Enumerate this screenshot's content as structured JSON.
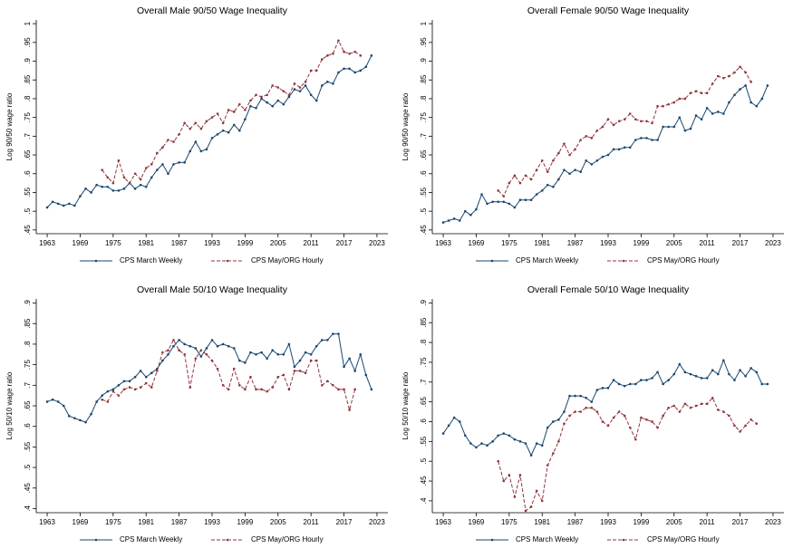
{
  "chart_data": [
    {
      "type": "line",
      "title": "Overall Male 90/50 Wage Inequality",
      "y_label": "Log 90/50 wage ratio",
      "legend": "bottom",
      "grid": false,
      "x": [
        1963,
        1964,
        1965,
        1966,
        1967,
        1968,
        1969,
        1970,
        1971,
        1972,
        1973,
        1974,
        1975,
        1976,
        1977,
        1978,
        1979,
        1980,
        1981,
        1982,
        1983,
        1984,
        1985,
        1986,
        1987,
        1988,
        1989,
        1990,
        1991,
        1992,
        1993,
        1994,
        1995,
        1996,
        1997,
        1998,
        1999,
        2000,
        2001,
        2002,
        2003,
        2004,
        2005,
        2006,
        2007,
        2008,
        2009,
        2010,
        2011,
        2012,
        2013,
        2014,
        2015,
        2016,
        2017,
        2018,
        2019,
        2020,
        2021,
        2022
      ],
      "xlim": [
        1962,
        2024
      ],
      "xticks": [
        1963,
        1969,
        1975,
        1981,
        1987,
        1993,
        1999,
        2005,
        2011,
        2017,
        2023
      ],
      "ylim": [
        0.44,
        1.01
      ],
      "yticks": [
        {
          "value": 0.45,
          "label": ".45"
        },
        {
          "value": 0.5,
          "label": ".5"
        },
        {
          "value": 0.55,
          "label": ".55"
        },
        {
          "value": 0.6,
          "label": ".6"
        },
        {
          "value": 0.65,
          "label": ".65"
        },
        {
          "value": 0.7,
          "label": ".7"
        },
        {
          "value": 0.75,
          "label": ".75"
        },
        {
          "value": 0.8,
          "label": ".8"
        },
        {
          "value": 0.85,
          "label": ".85"
        },
        {
          "value": 0.9,
          "label": ".9"
        },
        {
          "value": 0.95,
          "label": ".95"
        },
        1
      ],
      "series": [
        {
          "name": "CPS March Weekly",
          "color": "#1a476f",
          "dash": false,
          "values": [
            0.51,
            0.525,
            0.52,
            0.515,
            0.52,
            0.515,
            0.54,
            0.56,
            0.55,
            0.57,
            0.565,
            0.565,
            0.555,
            0.555,
            0.56,
            0.575,
            0.56,
            0.57,
            0.565,
            0.59,
            0.61,
            0.625,
            0.6,
            0.625,
            0.63,
            0.63,
            0.66,
            0.685,
            0.66,
            0.665,
            0.695,
            0.705,
            0.715,
            0.71,
            0.73,
            0.715,
            0.745,
            0.78,
            0.775,
            0.8,
            0.79,
            0.78,
            0.795,
            0.785,
            0.805,
            0.825,
            0.82,
            0.835,
            0.81,
            0.795,
            0.835,
            0.845,
            0.84,
            0.87,
            0.88,
            0.88,
            0.87,
            0.875,
            0.885,
            0.915
          ]
        },
        {
          "name": "CPS May/ORG Hourly",
          "color": "#90353b",
          "dash": true,
          "values": [
            null,
            null,
            null,
            null,
            null,
            null,
            null,
            null,
            null,
            null,
            0.61,
            0.59,
            0.575,
            0.635,
            0.59,
            0.575,
            0.6,
            0.585,
            0.615,
            0.625,
            0.655,
            0.67,
            0.69,
            0.685,
            0.705,
            0.735,
            0.72,
            0.735,
            0.72,
            0.74,
            0.75,
            0.76,
            0.735,
            0.77,
            0.765,
            0.785,
            0.77,
            0.795,
            0.81,
            0.805,
            0.81,
            0.835,
            0.83,
            0.82,
            0.81,
            0.84,
            0.83,
            0.845,
            0.875,
            0.875,
            0.905,
            0.915,
            0.92,
            0.955,
            0.925,
            0.92,
            0.925,
            0.915,
            null,
            null
          ]
        }
      ]
    },
    {
      "type": "line",
      "title": "Overall Female 90/50 Wage Inequality",
      "y_label": "Log 90/50 wage ratio",
      "legend": "bottom",
      "grid": false,
      "x": [
        1963,
        1964,
        1965,
        1966,
        1967,
        1968,
        1969,
        1970,
        1971,
        1972,
        1973,
        1974,
        1975,
        1976,
        1977,
        1978,
        1979,
        1980,
        1981,
        1982,
        1983,
        1984,
        1985,
        1986,
        1987,
        1988,
        1989,
        1990,
        1991,
        1992,
        1993,
        1994,
        1995,
        1996,
        1997,
        1998,
        1999,
        2000,
        2001,
        2002,
        2003,
        2004,
        2005,
        2006,
        2007,
        2008,
        2009,
        2010,
        2011,
        2012,
        2013,
        2014,
        2015,
        2016,
        2017,
        2018,
        2019,
        2020,
        2021,
        2022
      ],
      "xlim": [
        1962,
        2024
      ],
      "xticks": [
        1963,
        1969,
        1975,
        1981,
        1987,
        1993,
        1999,
        2005,
        2011,
        2017,
        2023
      ],
      "ylim": [
        0.44,
        1.01
      ],
      "yticks": [
        {
          "value": 0.45,
          "label": ".45"
        },
        {
          "value": 0.5,
          "label": ".5"
        },
        {
          "value": 0.55,
          "label": ".55"
        },
        {
          "value": 0.6,
          "label": ".6"
        },
        {
          "value": 0.65,
          "label": ".65"
        },
        {
          "value": 0.7,
          "label": ".7"
        },
        {
          "value": 0.75,
          "label": ".75"
        },
        {
          "value": 0.8,
          "label": ".8"
        },
        {
          "value": 0.85,
          "label": ".85"
        },
        {
          "value": 0.9,
          "label": ".9"
        },
        {
          "value": 0.95,
          "label": ".95"
        },
        1
      ],
      "series": [
        {
          "name": "CPS March Weekly",
          "color": "#1a476f",
          "dash": false,
          "values": [
            0.47,
            0.475,
            0.48,
            0.475,
            0.5,
            0.49,
            0.505,
            0.545,
            0.52,
            0.525,
            0.525,
            0.525,
            0.52,
            0.51,
            0.53,
            0.53,
            0.53,
            0.545,
            0.555,
            0.57,
            0.565,
            0.585,
            0.61,
            0.6,
            0.61,
            0.605,
            0.635,
            0.625,
            0.635,
            0.645,
            0.65,
            0.665,
            0.665,
            0.67,
            0.67,
            0.69,
            0.695,
            0.695,
            0.69,
            0.69,
            0.725,
            0.725,
            0.725,
            0.75,
            0.715,
            0.72,
            0.755,
            0.745,
            0.775,
            0.76,
            0.765,
            0.76,
            0.79,
            0.81,
            0.825,
            0.835,
            0.79,
            0.78,
            0.8,
            0.835
          ]
        },
        {
          "name": "CPS May/ORG Hourly",
          "color": "#90353b",
          "dash": true,
          "values": [
            null,
            null,
            null,
            null,
            null,
            null,
            null,
            null,
            null,
            null,
            0.555,
            0.54,
            0.575,
            0.595,
            0.575,
            0.595,
            0.585,
            0.61,
            0.635,
            0.605,
            0.635,
            0.655,
            0.68,
            0.65,
            0.665,
            0.69,
            0.7,
            0.695,
            0.715,
            0.725,
            0.745,
            0.73,
            0.74,
            0.745,
            0.76,
            0.745,
            0.74,
            0.74,
            0.735,
            0.78,
            0.78,
            0.785,
            0.79,
            0.8,
            0.8,
            0.815,
            0.82,
            0.815,
            0.815,
            0.84,
            0.86,
            0.855,
            0.86,
            0.87,
            0.885,
            0.87,
            0.845,
            null,
            null,
            null
          ]
        }
      ]
    },
    {
      "type": "line",
      "title": "Overall Male 50/10 Wage Inequality",
      "y_label": "Log 50/10 wage ratio",
      "legend": "bottom",
      "grid": false,
      "x": [
        1963,
        1964,
        1965,
        1966,
        1967,
        1968,
        1969,
        1970,
        1971,
        1972,
        1973,
        1974,
        1975,
        1976,
        1977,
        1978,
        1979,
        1980,
        1981,
        1982,
        1983,
        1984,
        1985,
        1986,
        1987,
        1988,
        1989,
        1990,
        1991,
        1992,
        1993,
        1994,
        1995,
        1996,
        1997,
        1998,
        1999,
        2000,
        2001,
        2002,
        2003,
        2004,
        2005,
        2006,
        2007,
        2008,
        2009,
        2010,
        2011,
        2012,
        2013,
        2014,
        2015,
        2016,
        2017,
        2018,
        2019,
        2020,
        2021,
        2022
      ],
      "xlim": [
        1962,
        2024
      ],
      "xticks": [
        1963,
        1969,
        1975,
        1981,
        1987,
        1993,
        1999,
        2005,
        2011,
        2017,
        2023
      ],
      "ylim": [
        0.39,
        0.91
      ],
      "yticks": [
        {
          "value": 0.4,
          "label": ".4"
        },
        {
          "value": 0.45,
          "label": ".45"
        },
        {
          "value": 0.5,
          "label": ".5"
        },
        {
          "value": 0.55,
          "label": ".55"
        },
        {
          "value": 0.6,
          "label": ".6"
        },
        {
          "value": 0.65,
          "label": ".65"
        },
        {
          "value": 0.7,
          "label": ".7"
        },
        {
          "value": 0.75,
          "label": ".75"
        },
        {
          "value": 0.8,
          "label": ".8"
        },
        {
          "value": 0.85,
          "label": ".85"
        },
        {
          "value": 0.9,
          "label": ".9"
        }
      ],
      "series": [
        {
          "name": "CPS March Weekly",
          "color": "#1a476f",
          "dash": false,
          "values": [
            0.66,
            0.665,
            0.66,
            0.65,
            0.625,
            0.62,
            0.615,
            0.61,
            0.63,
            0.66,
            0.675,
            0.685,
            0.69,
            0.7,
            0.71,
            0.71,
            0.72,
            0.735,
            0.72,
            0.73,
            0.74,
            0.76,
            0.775,
            0.795,
            0.81,
            0.8,
            0.795,
            0.79,
            0.77,
            0.79,
            0.81,
            0.795,
            0.8,
            0.795,
            0.79,
            0.76,
            0.755,
            0.78,
            0.775,
            0.78,
            0.765,
            0.785,
            0.775,
            0.775,
            0.8,
            0.745,
            0.76,
            0.78,
            0.775,
            0.795,
            0.81,
            0.81,
            0.825,
            0.825,
            0.745,
            0.765,
            0.735,
            0.775,
            0.725,
            0.69
          ]
        },
        {
          "name": "CPS May/ORG Hourly",
          "color": "#90353b",
          "dash": true,
          "values": [
            null,
            null,
            null,
            null,
            null,
            null,
            null,
            null,
            null,
            null,
            0.665,
            0.66,
            0.685,
            0.675,
            0.69,
            0.695,
            0.69,
            0.695,
            0.705,
            0.695,
            0.735,
            0.78,
            0.785,
            0.81,
            0.785,
            0.775,
            0.695,
            0.765,
            0.785,
            0.775,
            0.76,
            0.74,
            0.7,
            0.69,
            0.74,
            0.7,
            0.69,
            0.72,
            0.69,
            0.69,
            0.685,
            0.695,
            0.72,
            0.725,
            0.69,
            0.735,
            0.735,
            0.73,
            0.76,
            0.76,
            0.7,
            0.71,
            0.7,
            0.69,
            0.69,
            0.64,
            0.69,
            null,
            null,
            null
          ]
        }
      ]
    },
    {
      "type": "line",
      "title": "Overall Female 50/10 Wage Inequality",
      "y_label": "Log 50/10 wage ratio",
      "legend": "bottom",
      "grid": false,
      "x": [
        1963,
        1964,
        1965,
        1966,
        1967,
        1968,
        1969,
        1970,
        1971,
        1972,
        1973,
        1974,
        1975,
        1976,
        1977,
        1978,
        1979,
        1980,
        1981,
        1982,
        1983,
        1984,
        1985,
        1986,
        1987,
        1988,
        1989,
        1990,
        1991,
        1992,
        1993,
        1994,
        1995,
        1996,
        1997,
        1998,
        1999,
        2000,
        2001,
        2002,
        2003,
        2004,
        2005,
        2006,
        2007,
        2008,
        2009,
        2010,
        2011,
        2012,
        2013,
        2014,
        2015,
        2016,
        2017,
        2018,
        2019,
        2020,
        2021,
        2022
      ],
      "xlim": [
        1962,
        2024
      ],
      "xticks": [
        1963,
        1969,
        1975,
        1981,
        1987,
        1993,
        1999,
        2005,
        2011,
        2017,
        2023
      ],
      "ylim": [
        0.37,
        0.91
      ],
      "yticks": [
        {
          "value": 0.4,
          "label": ".4"
        },
        {
          "value": 0.45,
          "label": ".45"
        },
        {
          "value": 0.5,
          "label": ".5"
        },
        {
          "value": 0.55,
          "label": ".55"
        },
        {
          "value": 0.6,
          "label": ".6"
        },
        {
          "value": 0.65,
          "label": ".65"
        },
        {
          "value": 0.7,
          "label": ".7"
        },
        {
          "value": 0.75,
          "label": ".75"
        },
        {
          "value": 0.8,
          "label": ".8"
        },
        {
          "value": 0.85,
          "label": ".85"
        },
        {
          "value": 0.9,
          "label": ".9"
        }
      ],
      "series": [
        {
          "name": "CPS March Weekly",
          "color": "#1a476f",
          "dash": false,
          "values": [
            0.57,
            0.59,
            0.61,
            0.6,
            0.565,
            0.545,
            0.535,
            0.545,
            0.54,
            0.55,
            0.565,
            0.57,
            0.565,
            0.555,
            0.55,
            0.545,
            0.515,
            0.545,
            0.54,
            0.585,
            0.6,
            0.605,
            0.625,
            0.665,
            0.665,
            0.665,
            0.66,
            0.65,
            0.68,
            0.685,
            0.685,
            0.705,
            0.695,
            0.69,
            0.695,
            0.695,
            0.705,
            0.705,
            0.71,
            0.725,
            0.695,
            0.705,
            0.72,
            0.745,
            0.725,
            0.72,
            0.715,
            0.71,
            0.71,
            0.73,
            0.72,
            0.755,
            0.72,
            0.705,
            0.73,
            0.715,
            0.735,
            0.725,
            0.695,
            0.695
          ]
        },
        {
          "name": "CPS May/ORG Hourly",
          "color": "#90353b",
          "dash": true,
          "values": [
            null,
            null,
            null,
            null,
            null,
            null,
            null,
            null,
            null,
            null,
            0.5,
            0.45,
            0.465,
            0.41,
            0.465,
            0.375,
            0.385,
            0.425,
            0.4,
            0.49,
            0.52,
            0.55,
            0.595,
            0.615,
            0.625,
            0.625,
            0.635,
            0.635,
            0.625,
            0.6,
            0.59,
            0.61,
            0.625,
            0.615,
            0.585,
            0.555,
            0.61,
            0.605,
            0.6,
            0.585,
            0.615,
            0.635,
            0.64,
            0.625,
            0.645,
            0.635,
            0.64,
            0.645,
            0.645,
            0.66,
            0.63,
            0.625,
            0.615,
            0.59,
            0.575,
            0.59,
            0.605,
            0.595,
            null,
            null
          ]
        }
      ]
    }
  ]
}
